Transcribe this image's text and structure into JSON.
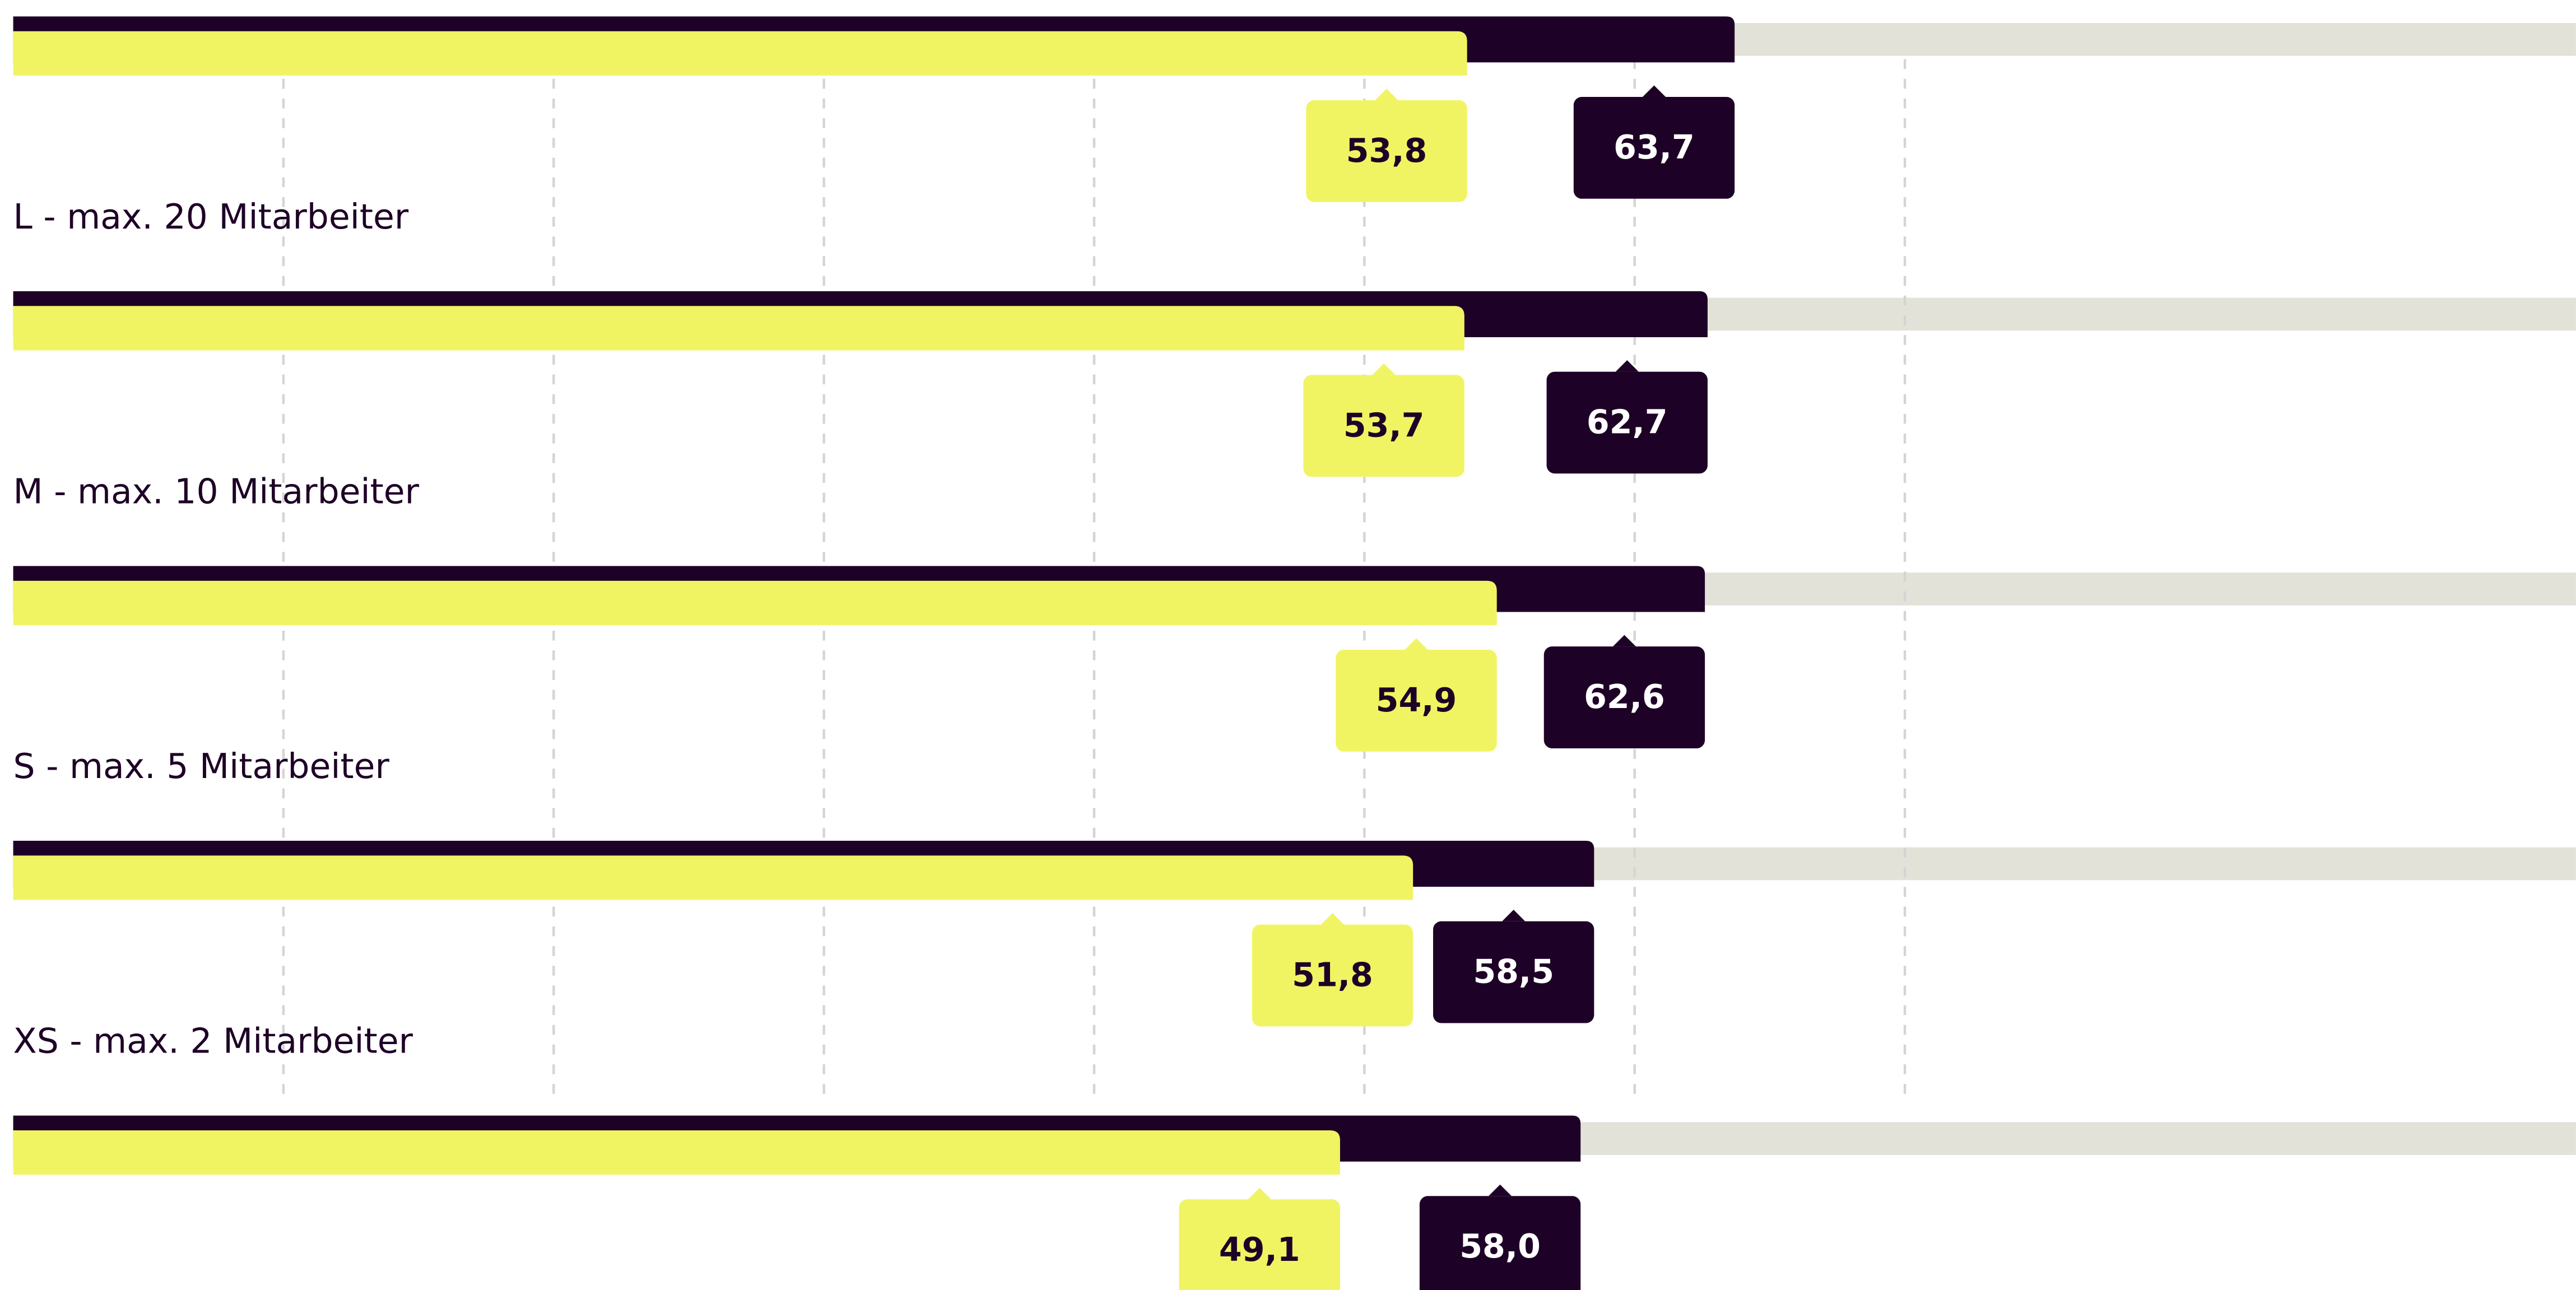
{
  "chart_data": {
    "type": "bar",
    "orientation": "horizontal",
    "categories": [
      null,
      "L - max. 20 Mitarbeiter",
      "M - max. 10 Mitarbeiter",
      "S - max. 5 Mitarbeiter",
      "XS - max. 2 Mitarbeiter"
    ],
    "series": [
      {
        "color": "#1e0126",
        "values": [
          63.7,
          62.7,
          62.6,
          58.5,
          58.0
        ],
        "value_labels": [
          "63,7",
          "62,7",
          "62,6",
          "58,5",
          "58,0"
        ]
      },
      {
        "color": "#f0f463",
        "values": [
          53.8,
          53.7,
          54.9,
          51.8,
          49.1
        ],
        "value_labels": [
          "53,8",
          "53,7",
          "54,9",
          "51,8",
          "49,1"
        ]
      }
    ],
    "track_color": "#e3e2d9",
    "xlim": [
      0,
      100
    ],
    "xticks": [
      10,
      20,
      30,
      40,
      50,
      60,
      70
    ],
    "grid": true
  }
}
